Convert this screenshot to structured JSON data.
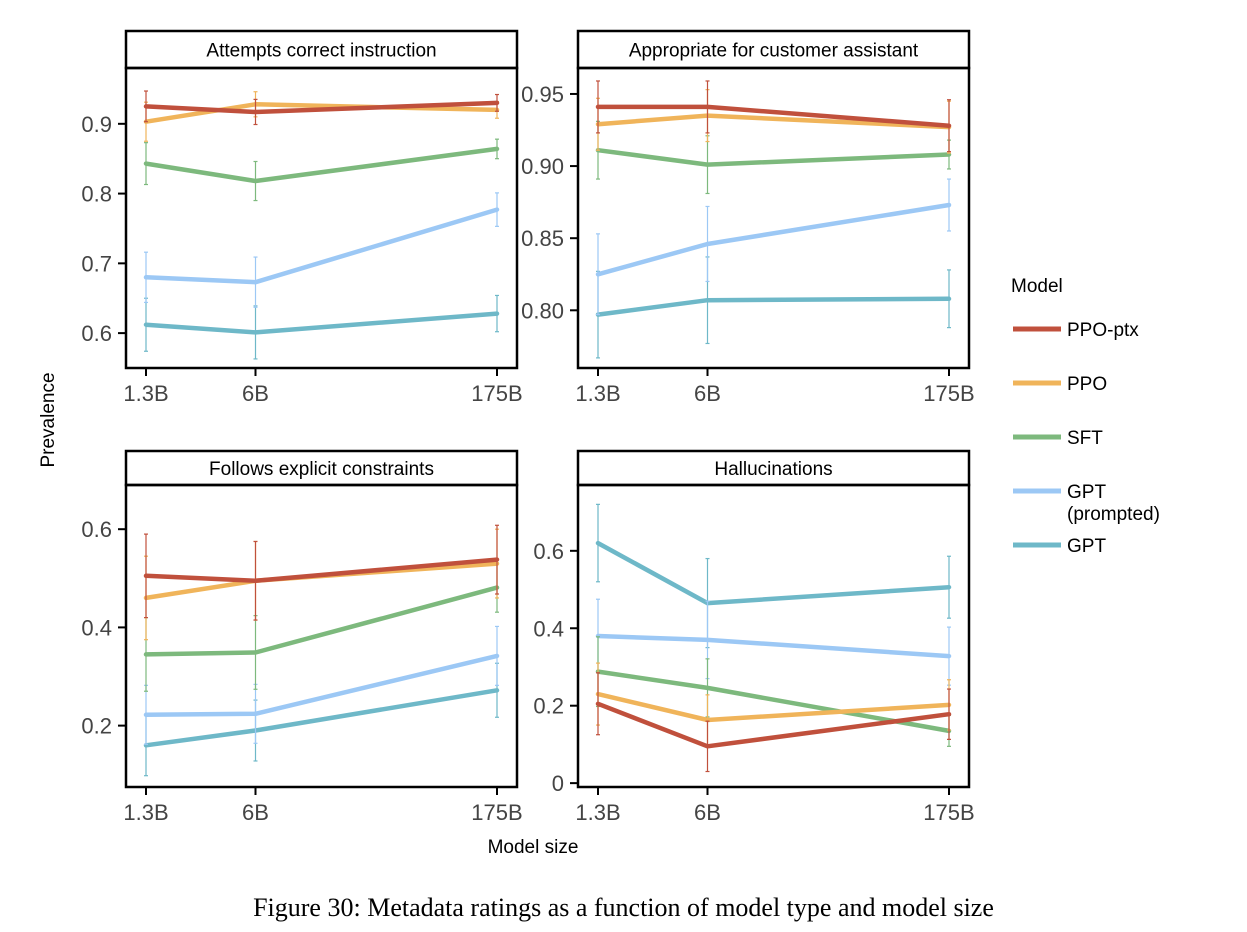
{
  "figure": {
    "caption": "Figure 30: Metadata ratings as a function of model type and model size",
    "ylabel": "Prevalence",
    "xlabel": "Model size",
    "legend_title": "Model"
  },
  "chart_data": [
    {
      "type": "line",
      "title": "Attempts correct instruction",
      "categories": [
        "1.3B",
        "6B",
        "175B"
      ],
      "x": [
        1.3,
        6,
        175
      ],
      "x_scale": "log",
      "ylim": [
        0.55,
        0.98
      ],
      "yticks": [
        0.6,
        0.7,
        0.8,
        0.9
      ],
      "ytick_labels": [
        "0.6",
        "0.7",
        "0.8",
        "0.9"
      ],
      "series": [
        {
          "name": "PPO-ptx",
          "values": [
            0.925,
            0.917,
            0.93
          ],
          "err": [
            0.022,
            0.018,
            0.012
          ]
        },
        {
          "name": "PPO",
          "values": [
            0.903,
            0.928,
            0.92
          ],
          "err": [
            0.028,
            0.018,
            0.012
          ]
        },
        {
          "name": "SFT",
          "values": [
            0.843,
            0.818,
            0.864
          ],
          "err": [
            0.03,
            0.028,
            0.014
          ]
        },
        {
          "name": "GPT (prompted)",
          "values": [
            0.68,
            0.673,
            0.777
          ],
          "err": [
            0.036,
            0.036,
            0.024
          ]
        },
        {
          "name": "GPT",
          "values": [
            0.612,
            0.601,
            0.628
          ],
          "err": [
            0.038,
            0.038,
            0.026
          ]
        }
      ]
    },
    {
      "type": "line",
      "title": "Appropriate for customer assistant",
      "categories": [
        "1.3B",
        "6B",
        "175B"
      ],
      "x": [
        1.3,
        6,
        175
      ],
      "x_scale": "log",
      "ylim": [
        0.76,
        0.968
      ],
      "yticks": [
        0.8,
        0.85,
        0.9,
        0.95
      ],
      "ytick_labels": [
        "0.80",
        "0.85",
        "0.90",
        "0.95"
      ],
      "series": [
        {
          "name": "PPO-ptx",
          "values": [
            0.941,
            0.941,
            0.928
          ],
          "err": [
            0.018,
            0.018,
            0.018
          ]
        },
        {
          "name": "PPO",
          "values": [
            0.929,
            0.935,
            0.927
          ],
          "err": [
            0.018,
            0.018,
            0.018
          ]
        },
        {
          "name": "SFT",
          "values": [
            0.911,
            0.901,
            0.908
          ],
          "err": [
            0.02,
            0.02,
            0.01
          ]
        },
        {
          "name": "GPT (prompted)",
          "values": [
            0.825,
            0.846,
            0.873
          ],
          "err": [
            0.028,
            0.026,
            0.018
          ]
        },
        {
          "name": "GPT",
          "values": [
            0.797,
            0.807,
            0.808
          ],
          "err": [
            0.03,
            0.03,
            0.02
          ]
        }
      ]
    },
    {
      "type": "line",
      "title": "Follows explicit constraints",
      "categories": [
        "1.3B",
        "6B",
        "175B"
      ],
      "x": [
        1.3,
        6,
        175
      ],
      "x_scale": "log",
      "ylim": [
        0.075,
        0.69
      ],
      "yticks": [
        0.2,
        0.4,
        0.6
      ],
      "ytick_labels": [
        "0.2",
        "0.4",
        "0.6"
      ],
      "series": [
        {
          "name": "PPO-ptx",
          "values": [
            0.505,
            0.495,
            0.538
          ],
          "err": [
            0.085,
            0.08,
            0.07
          ]
        },
        {
          "name": "PPO",
          "values": [
            0.46,
            0.495,
            0.53
          ],
          "err": [
            0.085,
            0.08,
            0.07
          ]
        },
        {
          "name": "SFT",
          "values": [
            0.345,
            0.349,
            0.481
          ],
          "err": [
            0.075,
            0.075,
            0.05
          ]
        },
        {
          "name": "GPT (prompted)",
          "values": [
            0.222,
            0.224,
            0.342
          ],
          "err": [
            0.06,
            0.06,
            0.06
          ]
        },
        {
          "name": "GPT",
          "values": [
            0.16,
            0.19,
            0.272
          ],
          "err": [
            0.062,
            0.062,
            0.055
          ]
        }
      ]
    },
    {
      "type": "line",
      "title": "Hallucinations",
      "categories": [
        "1.3B",
        "6B",
        "175B"
      ],
      "x": [
        1.3,
        6,
        175
      ],
      "x_scale": "log",
      "ylim": [
        -0.01,
        0.77
      ],
      "yticks": [
        0,
        0.2,
        0.4,
        0.6
      ],
      "ytick_labels": [
        "0",
        "0.2",
        "0.4",
        "0.6"
      ],
      "series": [
        {
          "name": "PPO-ptx",
          "values": [
            0.205,
            0.095,
            0.178
          ],
          "err": [
            0.08,
            0.065,
            0.065
          ]
        },
        {
          "name": "PPO",
          "values": [
            0.23,
            0.163,
            0.202
          ],
          "err": [
            0.08,
            0.065,
            0.065
          ]
        },
        {
          "name": "SFT",
          "values": [
            0.288,
            0.246,
            0.135
          ],
          "err": [
            0.09,
            0.075,
            0.04
          ]
        },
        {
          "name": "GPT (prompted)",
          "values": [
            0.38,
            0.37,
            0.328
          ],
          "err": [
            0.095,
            0.1,
            0.075
          ]
        },
        {
          "name": "GPT",
          "values": [
            0.62,
            0.465,
            0.506
          ],
          "err": [
            0.1,
            0.115,
            0.08
          ]
        }
      ]
    }
  ],
  "legend": {
    "placement": "right",
    "items": [
      {
        "label": "PPO-ptx",
        "color": "#C0503C"
      },
      {
        "label": "PPO",
        "color": "#F0B45A"
      },
      {
        "label": "SFT",
        "color": "#7DB97D"
      },
      {
        "label": "GPT",
        "label2": "(prompted)",
        "color": "#9CC8F5"
      },
      {
        "label": "GPT",
        "color": "#6EB8C8"
      }
    ]
  }
}
